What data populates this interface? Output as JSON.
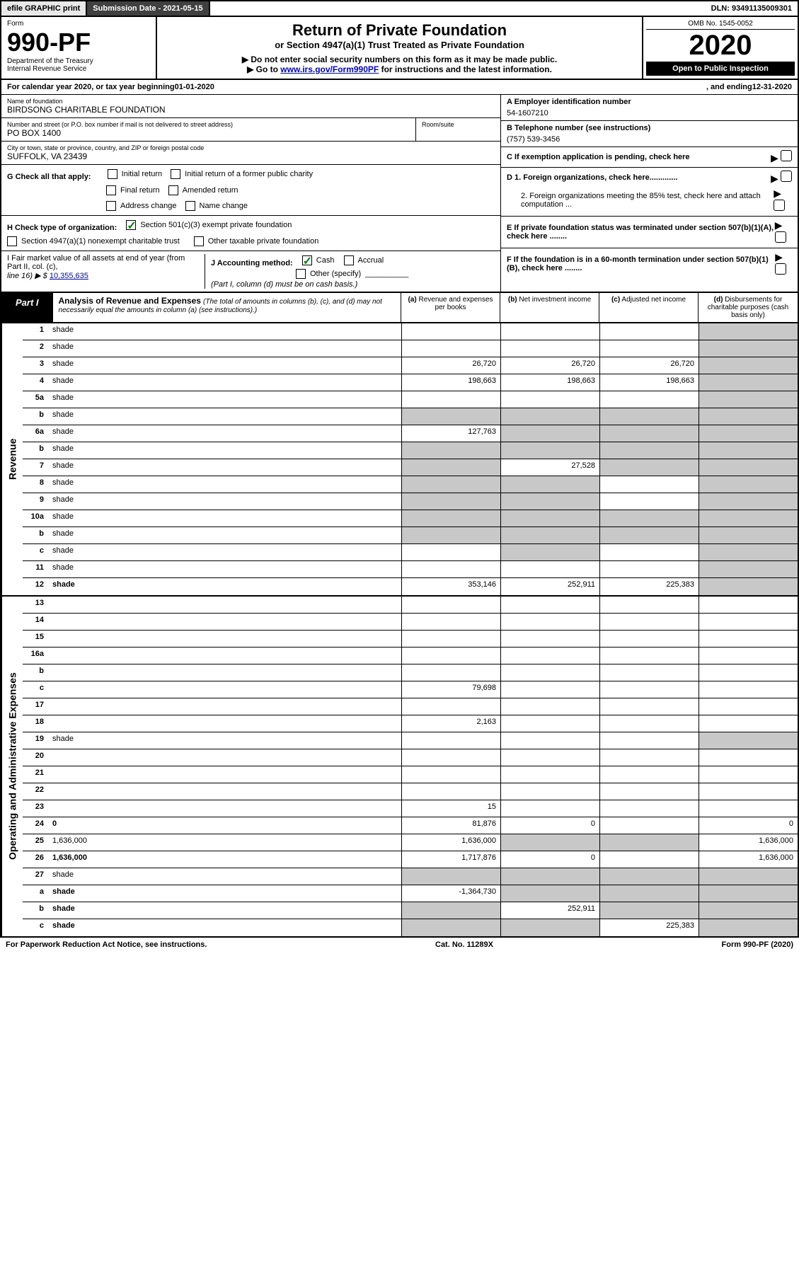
{
  "topbar": {
    "efile": "efile GRAPHIC print",
    "submission": "Submission Date - 2021-05-15",
    "dln": "DLN: 93491135009301"
  },
  "header": {
    "form_label": "Form",
    "form_number": "990-PF",
    "dept1": "Department of the Treasury",
    "dept2": "Internal Revenue Service",
    "title": "Return of Private Foundation",
    "subtitle": "or Section 4947(a)(1) Trust Treated as Private Foundation",
    "instr1": "▶ Do not enter social security numbers on this form as it may be made public.",
    "instr2_prefix": "▶ Go to ",
    "instr2_link": "www.irs.gov/Form990PF",
    "instr2_suffix": " for instructions and the latest information.",
    "omb": "OMB No. 1545-0052",
    "year": "2020",
    "open": "Open to Public Inspection"
  },
  "calendar": {
    "prefix": "For calendar year 2020, or tax year beginning ",
    "begin": "01-01-2020",
    "mid": ", and ending ",
    "end": "12-31-2020"
  },
  "info": {
    "name_label": "Name of foundation",
    "name": "BIRDSONG CHARITABLE FOUNDATION",
    "addr_label": "Number and street (or P.O. box number if mail is not delivered to street address)",
    "addr": "PO BOX 1400",
    "room_label": "Room/suite",
    "city_label": "City or town, state or province, country, and ZIP or foreign postal code",
    "city": "SUFFOLK, VA  23439",
    "ein_label": "A Employer identification number",
    "ein": "54-1607210",
    "tel_label": "B Telephone number (see instructions)",
    "tel": "(757) 539-3456",
    "c_label": "C If exemption application is pending, check here",
    "d1": "D 1. Foreign organizations, check here.............",
    "d2": "2. Foreign organizations meeting the 85% test, check here and attach computation ...",
    "e": "E If private foundation status was terminated under section 507(b)(1)(A), check here ........",
    "f": "F If the foundation is in a 60-month termination under section 507(b)(1)(B), check here ........"
  },
  "g": {
    "label": "G Check all that apply:",
    "opts": [
      "Initial return",
      "Initial return of a former public charity",
      "Final return",
      "Amended return",
      "Address change",
      "Name change"
    ]
  },
  "h": {
    "label": "H Check type of organization:",
    "opt1": "Section 501(c)(3) exempt private foundation",
    "opt2": "Section 4947(a)(1) nonexempt charitable trust",
    "opt3": "Other taxable private foundation"
  },
  "i": {
    "label1": "I Fair market value of all assets at end of year (from Part II, col. (c),",
    "label2": "line 16) ▶ $",
    "value": "10,355,635"
  },
  "j": {
    "label": "J Accounting method:",
    "cash": "Cash",
    "accrual": "Accrual",
    "other": "Other (specify)",
    "note": "(Part I, column (d) must be on cash basis.)"
  },
  "part1": {
    "tab": "Part I",
    "title": "Analysis of Revenue and Expenses",
    "note": "(The total of amounts in columns (b), (c), and (d) may not necessarily equal the amounts in column (a) (see instructions).)",
    "cols": {
      "a": "(a) Revenue and expenses per books",
      "b": "(b) Net investment income",
      "c": "(c) Adjusted net income",
      "d": "(d) Disbursements for charitable purposes (cash basis only)"
    }
  },
  "sections": {
    "revenue": "Revenue",
    "expenses": "Operating and Administrative Expenses"
  },
  "rows": [
    {
      "n": "1",
      "d": "shade",
      "a": "",
      "b": "",
      "c": ""
    },
    {
      "n": "2",
      "d": "shade",
      "a": "",
      "b": "",
      "c": ""
    },
    {
      "n": "3",
      "d": "shade",
      "a": "26,720",
      "b": "26,720",
      "c": "26,720"
    },
    {
      "n": "4",
      "d": "shade",
      "a": "198,663",
      "b": "198,663",
      "c": "198,663"
    },
    {
      "n": "5a",
      "d": "shade",
      "a": "",
      "b": "",
      "c": ""
    },
    {
      "n": "b",
      "d": "shade",
      "a": "shade",
      "b": "shade",
      "c": "shade"
    },
    {
      "n": "6a",
      "d": "shade",
      "a": "127,763",
      "b": "shade",
      "c": "shade"
    },
    {
      "n": "b",
      "d": "shade",
      "a": "shade",
      "b": "shade",
      "c": "shade"
    },
    {
      "n": "7",
      "d": "shade",
      "a": "shade",
      "b": "27,528",
      "c": "shade"
    },
    {
      "n": "8",
      "d": "shade",
      "a": "shade",
      "b": "shade",
      "c": ""
    },
    {
      "n": "9",
      "d": "shade",
      "a": "shade",
      "b": "shade",
      "c": ""
    },
    {
      "n": "10a",
      "d": "shade",
      "a": "shade",
      "b": "shade",
      "c": "shade"
    },
    {
      "n": "b",
      "d": "shade",
      "a": "shade",
      "b": "shade",
      "c": "shade"
    },
    {
      "n": "c",
      "d": "shade",
      "a": "",
      "b": "shade",
      "c": ""
    },
    {
      "n": "11",
      "d": "shade",
      "a": "",
      "b": "",
      "c": ""
    },
    {
      "n": "12",
      "d": "shade",
      "a": "353,146",
      "b": "252,911",
      "c": "225,383",
      "bold": true
    }
  ],
  "exp_rows": [
    {
      "n": "13",
      "d": "",
      "a": "",
      "b": "",
      "c": ""
    },
    {
      "n": "14",
      "d": "",
      "a": "",
      "b": "",
      "c": ""
    },
    {
      "n": "15",
      "d": "",
      "a": "",
      "b": "",
      "c": ""
    },
    {
      "n": "16a",
      "d": "",
      "a": "",
      "b": "",
      "c": ""
    },
    {
      "n": "b",
      "d": "",
      "a": "",
      "b": "",
      "c": ""
    },
    {
      "n": "c",
      "d": "",
      "a": "79,698",
      "b": "",
      "c": ""
    },
    {
      "n": "17",
      "d": "",
      "a": "",
      "b": "",
      "c": ""
    },
    {
      "n": "18",
      "d": "",
      "a": "2,163",
      "b": "",
      "c": ""
    },
    {
      "n": "19",
      "d": "shade",
      "a": "",
      "b": "",
      "c": ""
    },
    {
      "n": "20",
      "d": "",
      "a": "",
      "b": "",
      "c": ""
    },
    {
      "n": "21",
      "d": "",
      "a": "",
      "b": "",
      "c": ""
    },
    {
      "n": "22",
      "d": "",
      "a": "",
      "b": "",
      "c": ""
    },
    {
      "n": "23",
      "d": "",
      "a": "15",
      "b": "",
      "c": ""
    },
    {
      "n": "24",
      "d": "0",
      "a": "81,876",
      "b": "0",
      "c": "",
      "bold": true
    },
    {
      "n": "25",
      "d": "1,636,000",
      "a": "1,636,000",
      "b": "shade",
      "c": "shade"
    },
    {
      "n": "26",
      "d": "1,636,000",
      "a": "1,717,876",
      "b": "0",
      "c": "",
      "bold": true
    },
    {
      "n": "27",
      "d": "shade",
      "a": "shade",
      "b": "shade",
      "c": "shade"
    },
    {
      "n": "a",
      "d": "shade",
      "a": "-1,364,730",
      "b": "shade",
      "c": "shade",
      "bold": true
    },
    {
      "n": "b",
      "d": "shade",
      "a": "shade",
      "b": "252,911",
      "c": "shade",
      "bold": true
    },
    {
      "n": "c",
      "d": "shade",
      "a": "shade",
      "b": "shade",
      "c": "225,383",
      "bold": true
    }
  ],
  "footer": {
    "left": "For Paperwork Reduction Act Notice, see instructions.",
    "mid": "Cat. No. 11289X",
    "right": "Form 990-PF (2020)"
  }
}
